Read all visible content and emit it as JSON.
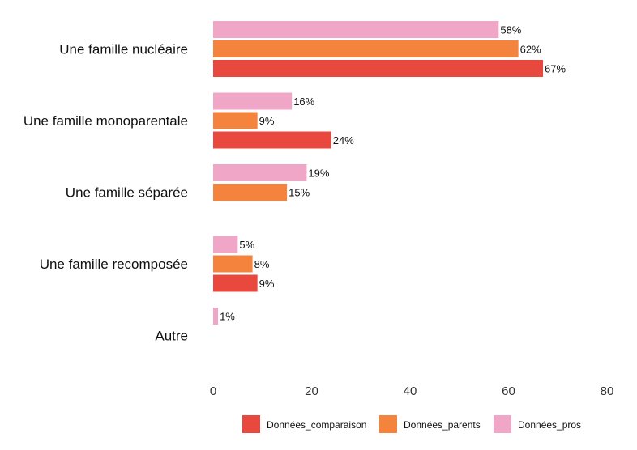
{
  "chart_data": {
    "type": "bar",
    "orientation": "horizontal",
    "categories": [
      "Une famille nucléaire",
      "Une famille monoparentale",
      "Une famille séparée",
      "Une famille recomposée",
      "Autre"
    ],
    "series": [
      {
        "name": "Données_comparaison",
        "color": "#e8483e",
        "values": [
          67,
          24,
          null,
          9,
          null
        ]
      },
      {
        "name": "Données_parents",
        "color": "#f4833d",
        "values": [
          62,
          9,
          15,
          8,
          null
        ]
      },
      {
        "name": "Données_pros",
        "color": "#f0a6c7",
        "values": [
          58,
          16,
          19,
          5,
          1
        ]
      }
    ],
    "value_suffix": "%",
    "xlim": [
      0,
      80
    ],
    "xticks": [
      0,
      20,
      40,
      60,
      80
    ],
    "grid": false,
    "legend_position": "bottom",
    "title": "",
    "xlabel": "",
    "ylabel": ""
  }
}
